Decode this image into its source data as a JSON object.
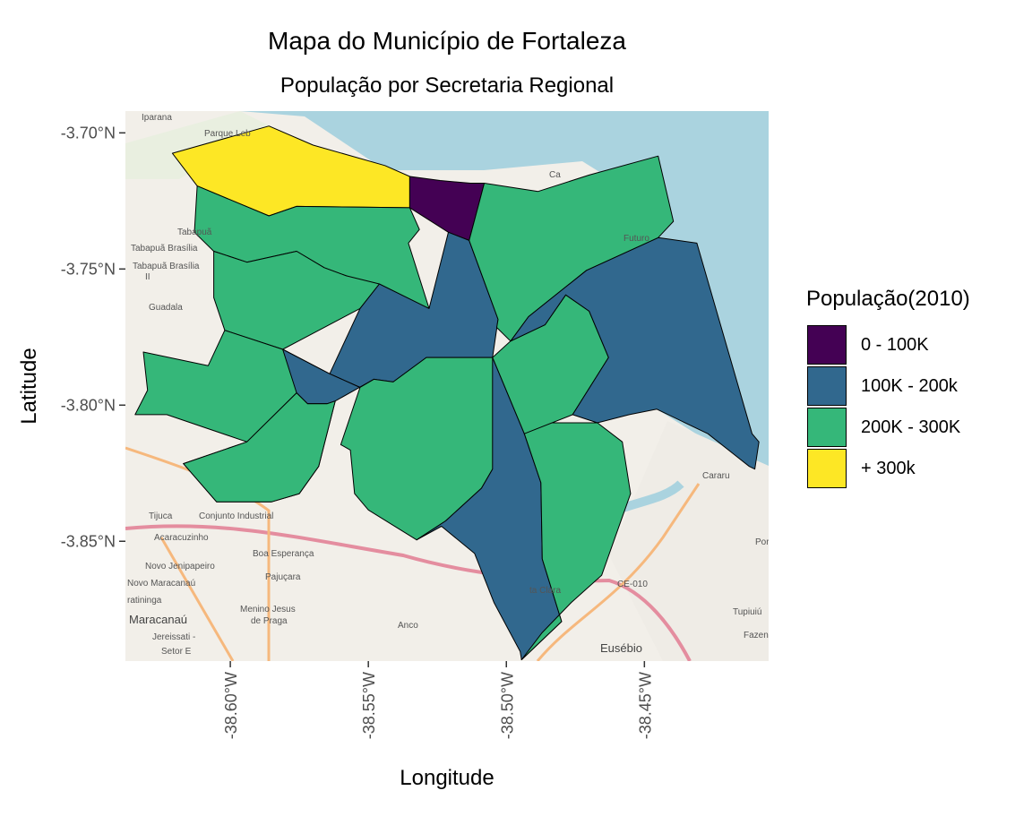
{
  "title": "Mapa do Município de Fortaleza",
  "subtitle": "População por Secretaria Regional",
  "colors": {
    "bin0": "#440154",
    "bin1": "#31688E",
    "bin2": "#35B779",
    "bin3": "#FDE725",
    "ocean": "#AAD3DF",
    "land": "#F2EFE9"
  },
  "chart_data": {
    "type": "choropleth",
    "xlabel": "Longitude",
    "ylabel": "Latitude",
    "xlim": [
      -38.638,
      -38.405
    ],
    "ylim": [
      -3.894,
      -3.692
    ],
    "x_ticks": [
      {
        "value": -38.6,
        "label": "-38.60°W"
      },
      {
        "value": -38.55,
        "label": "-38.55°W"
      },
      {
        "value": -38.5,
        "label": "-38.50°W"
      },
      {
        "value": -38.45,
        "label": "-38.45°W"
      }
    ],
    "y_ticks": [
      {
        "value": -3.7,
        "label": "-3.70°N"
      },
      {
        "value": -3.75,
        "label": "-3.75°N"
      },
      {
        "value": -3.8,
        "label": "-3.80°N"
      },
      {
        "value": -3.85,
        "label": "-3.85°N"
      }
    ],
    "legend": {
      "title": "População(2010)",
      "position": "right",
      "items": [
        {
          "label": "0 - 100K",
          "color": "#440154"
        },
        {
          "label": "100K - 200k",
          "color": "#31688E"
        },
        {
          "label": "200K - 300K",
          "color": "#35B779"
        },
        {
          "label": "+ 300k",
          "color": "#FDE725"
        }
      ]
    },
    "regions": [
      {
        "bin": 3,
        "coords": [
          [
            -38.621,
            -3.7075
          ],
          [
            -38.586,
            -3.6975
          ],
          [
            -38.57,
            -3.7045
          ],
          [
            -38.544,
            -3.712
          ],
          [
            -38.535,
            -3.716
          ],
          [
            -38.535,
            -3.7275
          ],
          [
            -38.576,
            -3.727
          ],
          [
            -38.586,
            -3.7305
          ],
          [
            -38.612,
            -3.7195
          ]
        ]
      },
      {
        "bin": 0,
        "coords": [
          [
            -38.535,
            -3.716
          ],
          [
            -38.524,
            -3.7175
          ],
          [
            -38.513,
            -3.7185
          ],
          [
            -38.508,
            -3.7185
          ],
          [
            -38.5135,
            -3.7395
          ],
          [
            -38.521,
            -3.7365
          ],
          [
            -38.535,
            -3.7275
          ]
        ]
      },
      {
        "bin": 2,
        "coords": [
          [
            -38.612,
            -3.7195
          ],
          [
            -38.586,
            -3.7305
          ],
          [
            -38.576,
            -3.727
          ],
          [
            -38.535,
            -3.7275
          ],
          [
            -38.5315,
            -3.7355
          ],
          [
            -38.5355,
            -3.7405
          ],
          [
            -38.528,
            -3.7645
          ],
          [
            -38.558,
            -3.7525
          ],
          [
            -38.566,
            -3.7495
          ],
          [
            -38.576,
            -3.7435
          ],
          [
            -38.594,
            -3.7475
          ],
          [
            -38.606,
            -3.7435
          ],
          [
            -38.613,
            -3.7365
          ]
        ]
      },
      {
        "bin": 2,
        "coords": [
          [
            -38.594,
            -3.7475
          ],
          [
            -38.576,
            -3.7435
          ],
          [
            -38.566,
            -3.7495
          ],
          [
            -38.558,
            -3.7525
          ],
          [
            -38.546,
            -3.7555
          ],
          [
            -38.553,
            -3.7645
          ],
          [
            -38.581,
            -3.7795
          ],
          [
            -38.602,
            -3.7725
          ],
          [
            -38.606,
            -3.7605
          ],
          [
            -38.606,
            -3.7435
          ]
        ]
      },
      {
        "bin": 2,
        "coords": [
          [
            -38.602,
            -3.7725
          ],
          [
            -38.581,
            -3.7795
          ],
          [
            -38.564,
            -3.7885
          ],
          [
            -38.594,
            -3.8135
          ],
          [
            -38.623,
            -3.8035
          ],
          [
            -38.6345,
            -3.8035
          ],
          [
            -38.63,
            -3.7945
          ],
          [
            -38.6315,
            -3.7805
          ],
          [
            -38.608,
            -3.7855
          ]
        ]
      },
      {
        "bin": 1,
        "coords": [
          [
            -38.5135,
            -3.7395
          ],
          [
            -38.521,
            -3.7365
          ],
          [
            -38.528,
            -3.7645
          ],
          [
            -38.546,
            -3.7555
          ],
          [
            -38.553,
            -3.7645
          ],
          [
            -38.564,
            -3.7885
          ],
          [
            -38.553,
            -3.7935
          ],
          [
            -38.548,
            -3.7905
          ],
          [
            -38.541,
            -3.7915
          ],
          [
            -38.529,
            -3.7825
          ],
          [
            -38.505,
            -3.7825
          ],
          [
            -38.503,
            -3.7685
          ]
        ]
      },
      {
        "bin": 1,
        "coords": [
          [
            -38.548,
            -3.7905
          ],
          [
            -38.553,
            -3.7935
          ],
          [
            -38.564,
            -3.7885
          ],
          [
            -38.581,
            -3.7795
          ],
          [
            -38.576,
            -3.7955
          ],
          [
            -38.572,
            -3.7995
          ],
          [
            -38.565,
            -3.7995
          ],
          [
            -38.562,
            -3.7985
          ]
        ]
      },
      {
        "bin": 2,
        "coords": [
          [
            -38.594,
            -3.8135
          ],
          [
            -38.576,
            -3.7955
          ],
          [
            -38.572,
            -3.7995
          ],
          [
            -38.565,
            -3.7995
          ],
          [
            -38.562,
            -3.7985
          ],
          [
            -38.568,
            -3.8225
          ],
          [
            -38.575,
            -3.8325
          ],
          [
            -38.585,
            -3.8355
          ],
          [
            -38.605,
            -3.8355
          ],
          [
            -38.617,
            -3.8215
          ]
        ]
      },
      {
        "bin": 2,
        "coords": [
          [
            -38.562,
            -3.7985
          ],
          [
            -38.565,
            -3.7995
          ],
          [
            -38.572,
            -3.7995
          ],
          [
            -38.576,
            -3.7955
          ],
          [
            -38.594,
            -3.8135
          ],
          [
            -38.617,
            -3.8215
          ],
          [
            -38.605,
            -3.8355
          ],
          [
            -38.585,
            -3.8355
          ],
          [
            -38.575,
            -3.8325
          ],
          [
            -38.568,
            -3.8225
          ]
        ]
      },
      {
        "bin": 2,
        "coords": [
          [
            -38.548,
            -3.7905
          ],
          [
            -38.541,
            -3.7915
          ],
          [
            -38.529,
            -3.7825
          ],
          [
            -38.505,
            -3.7825
          ],
          [
            -38.4935,
            -3.8105
          ],
          [
            -38.505,
            -3.8235
          ],
          [
            -38.509,
            -3.8305
          ],
          [
            -38.522,
            -3.8425
          ],
          [
            -38.5325,
            -3.8495
          ],
          [
            -38.55,
            -3.8385
          ],
          [
            -38.555,
            -3.8325
          ],
          [
            -38.5565,
            -3.8165
          ],
          [
            -38.56,
            -3.8145
          ],
          [
            -38.553,
            -3.7935
          ]
        ]
      },
      {
        "bin": 1,
        "coords": [
          [
            -38.505,
            -3.7825
          ],
          [
            -38.4935,
            -3.8105
          ],
          [
            -38.4875,
            -3.8285
          ],
          [
            -38.487,
            -3.8565
          ],
          [
            -38.48,
            -3.8795
          ],
          [
            -38.4945,
            -3.8935
          ],
          [
            -38.495,
            -3.8905
          ],
          [
            -38.5045,
            -3.8725
          ],
          [
            -38.5115,
            -3.8545
          ],
          [
            -38.5235,
            -3.8445
          ],
          [
            -38.5325,
            -3.8495
          ],
          [
            -38.522,
            -3.8425
          ],
          [
            -38.509,
            -3.8305
          ],
          [
            -38.505,
            -3.8235
          ]
        ]
      },
      {
        "bin": 2,
        "coords": [
          [
            -38.4935,
            -3.8105
          ],
          [
            -38.4875,
            -3.8285
          ],
          [
            -38.487,
            -3.8565
          ],
          [
            -38.48,
            -3.8795
          ],
          [
            -38.4945,
            -3.8935
          ],
          [
            -38.487,
            -3.8835
          ],
          [
            -38.4765,
            -3.8725
          ],
          [
            -38.4655,
            -3.8625
          ],
          [
            -38.455,
            -3.8325
          ],
          [
            -38.458,
            -3.8135
          ],
          [
            -38.467,
            -3.8065
          ],
          [
            -38.486,
            -3.8065
          ]
        ]
      },
      {
        "bin": 2,
        "coords": [
          [
            -38.4985,
            -3.7765
          ],
          [
            -38.486,
            -3.7705
          ],
          [
            -38.4785,
            -3.7595
          ],
          [
            -38.47,
            -3.7655
          ],
          [
            -38.463,
            -3.7825
          ],
          [
            -38.476,
            -3.8035
          ],
          [
            -38.4935,
            -3.8105
          ],
          [
            -38.505,
            -3.7825
          ]
        ]
      },
      {
        "bin": 1,
        "coords": [
          [
            -38.4785,
            -3.7595
          ],
          [
            -38.486,
            -3.7705
          ],
          [
            -38.4985,
            -3.7765
          ],
          [
            -38.492,
            -3.7675
          ],
          [
            -38.471,
            -3.7505
          ],
          [
            -38.445,
            -3.7385
          ],
          [
            -38.431,
            -3.7405
          ],
          [
            -38.411,
            -3.8105
          ],
          [
            -38.4085,
            -3.8135
          ],
          [
            -38.41,
            -3.8235
          ],
          [
            -38.412,
            -3.8225
          ],
          [
            -38.427,
            -3.8105
          ],
          [
            -38.4455,
            -3.8015
          ],
          [
            -38.4555,
            -3.8035
          ],
          [
            -38.467,
            -3.8065
          ],
          [
            -38.476,
            -3.8035
          ],
          [
            -38.463,
            -3.7825
          ],
          [
            -38.47,
            -3.7655
          ]
        ]
      },
      {
        "bin": 2,
        "coords": [
          [
            -38.508,
            -3.7185
          ],
          [
            -38.5135,
            -3.7395
          ],
          [
            -38.503,
            -3.7685
          ],
          [
            -38.5035,
            -3.7715
          ],
          [
            -38.4985,
            -3.7765
          ],
          [
            -38.492,
            -3.7675
          ],
          [
            -38.471,
            -3.7505
          ],
          [
            -38.445,
            -3.7385
          ],
          [
            -38.4395,
            -3.7325
          ],
          [
            -38.445,
            -3.7085
          ],
          [
            -38.47,
            -3.7155
          ],
          [
            -38.4885,
            -3.7215
          ]
        ]
      }
    ]
  }
}
